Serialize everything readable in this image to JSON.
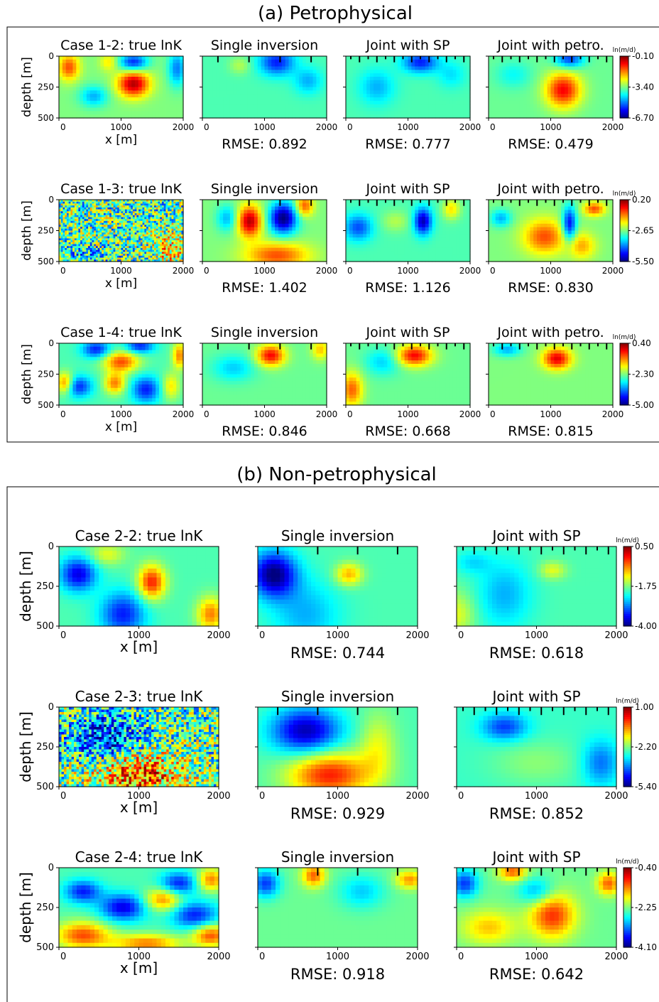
{
  "chart_data": {
    "type": "heatmap",
    "colormap": "jet",
    "sections": [
      {
        "title": "(a) Petrophysical",
        "panel_titles": [
          "Single inversion",
          "Joint with SP",
          "Joint with petro."
        ],
        "rows": [
          {
            "case_title": "Case 1-2: true lnK",
            "rmse": [
              "RMSE: 0.892",
              "RMSE: 0.777",
              "RMSE: 0.479"
            ],
            "colorbar": {
              "unit": "ln(m/d)",
              "ticks": [
                "-0.10",
                "-3.40",
                "-6.70"
              ]
            }
          },
          {
            "case_title": "Case 1-3: true lnK",
            "rmse": [
              "RMSE: 1.402",
              "RMSE: 1.126",
              "RMSE: 0.830"
            ],
            "colorbar": {
              "unit": "ln(m/d)",
              "ticks": [
                "0.20",
                "-2.65",
                "-5.50"
              ]
            }
          },
          {
            "case_title": "Case 1-4: true lnK",
            "rmse": [
              "RMSE: 0.846",
              "RMSE: 0.668",
              "RMSE: 0.815"
            ],
            "colorbar": {
              "unit": "ln(m/d)",
              "ticks": [
                "0.40",
                "-2.30",
                "-5.00"
              ]
            }
          }
        ]
      },
      {
        "title": "(b) Non-petrophysical",
        "panel_titles": [
          "Single inversion",
          "Joint with SP"
        ],
        "rows": [
          {
            "case_title": "Case 2-2: true lnK",
            "rmse": [
              "RMSE: 0.744",
              "RMSE: 0.618"
            ],
            "colorbar": {
              "unit": "ln(m/d)",
              "ticks": [
                "0.50",
                "-1.75",
                "-4.00"
              ]
            }
          },
          {
            "case_title": "Case 2-3: true lnK",
            "rmse": [
              "RMSE: 0.929",
              "RMSE: 0.852"
            ],
            "colorbar": {
              "unit": "ln(m/d)",
              "ticks": [
                "1.00",
                "-2.20",
                "-5.40"
              ]
            }
          },
          {
            "case_title": "Case 2-4: true lnK",
            "rmse": [
              "RMSE: 0.918",
              "RMSE: 0.642"
            ],
            "colorbar": {
              "unit": "ln(m/d)",
              "ticks": [
                "-0.40",
                "-2.25",
                "-4.10"
              ]
            }
          }
        ]
      }
    ],
    "xlabel": "x [m]",
    "ylabel": "depth [m]",
    "x_ticks": [
      "0",
      "1000",
      "2000"
    ],
    "y_ticks": [
      "0",
      "250",
      "500"
    ],
    "xlim": [
      0,
      2000
    ],
    "ylim": [
      500,
      0
    ]
  }
}
